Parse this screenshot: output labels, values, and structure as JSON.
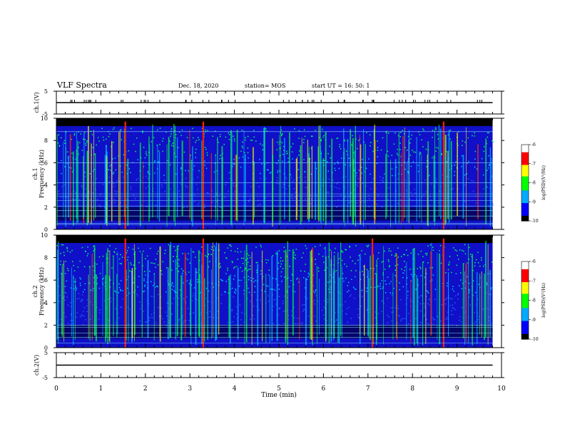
{
  "header": {
    "title": "VLF Spectra",
    "date": "Dec. 18, 2020",
    "station": "station= MOS",
    "start": "start  UT =   16: 50: 1"
  },
  "chart_data": [
    {
      "type": "line",
      "panel": "ch1-waveform",
      "ylabel": "ch.1(V)",
      "ylim": [
        -5,
        5
      ],
      "yticks": [
        "5",
        "-5"
      ],
      "xlim": [
        0,
        10
      ],
      "x": [
        0,
        9.8
      ],
      "values": [
        0,
        0
      ]
    },
    {
      "type": "heatmap",
      "panel": "ch1-spectrogram",
      "ylabel": "ch.1 Frequency (kHz)",
      "ylim": [
        0,
        10
      ],
      "yticks": [
        "0",
        "2",
        "4",
        "6",
        "8",
        "10"
      ],
      "xlim": [
        0,
        10
      ],
      "colorbar": {
        "label": "log(PSD)(V²/Hz)",
        "ticks": [
          "-6",
          "-7",
          "-8",
          "-9",
          "-10"
        ],
        "range": [
          -10,
          -6
        ],
        "colors": [
          "#000000",
          "#0000ff",
          "#00aaff",
          "#00ff00",
          "#ffff00",
          "#ff0000",
          "#ffffff"
        ]
      },
      "strong_bursts_min": [
        1.55,
        3.3,
        8.7
      ]
    },
    {
      "type": "heatmap",
      "panel": "ch2-spectrogram",
      "ylabel": "ch.2 Frequency (kHz)",
      "ylim": [
        0,
        10
      ],
      "yticks": [
        "0",
        "2",
        "4",
        "6",
        "8",
        "10"
      ],
      "xlim": [
        0,
        10
      ],
      "colorbar": {
        "label": "log(PSD)(V²/Hz)",
        "ticks": [
          "-6",
          "-7",
          "-8",
          "-9",
          "-10"
        ],
        "range": [
          -10,
          -6
        ],
        "colors": [
          "#000000",
          "#0000ff",
          "#00aaff",
          "#00ff00",
          "#ffff00",
          "#ff0000",
          "#ffffff"
        ]
      },
      "strong_bursts_min": [
        1.55,
        3.3,
        7.1,
        8.7
      ]
    },
    {
      "type": "line",
      "panel": "ch2-waveform",
      "ylabel": "ch.2(V)",
      "ylim": [
        -5,
        5
      ],
      "yticks": [
        "5",
        "-5"
      ],
      "xlim": [
        0,
        10
      ],
      "x": [
        0,
        9.8
      ],
      "values": [
        0,
        0
      ],
      "xlabel": "Time (min)",
      "xticks": [
        "0",
        "1",
        "2",
        "3",
        "4",
        "5",
        "6",
        "7",
        "8",
        "9",
        "10"
      ]
    }
  ]
}
